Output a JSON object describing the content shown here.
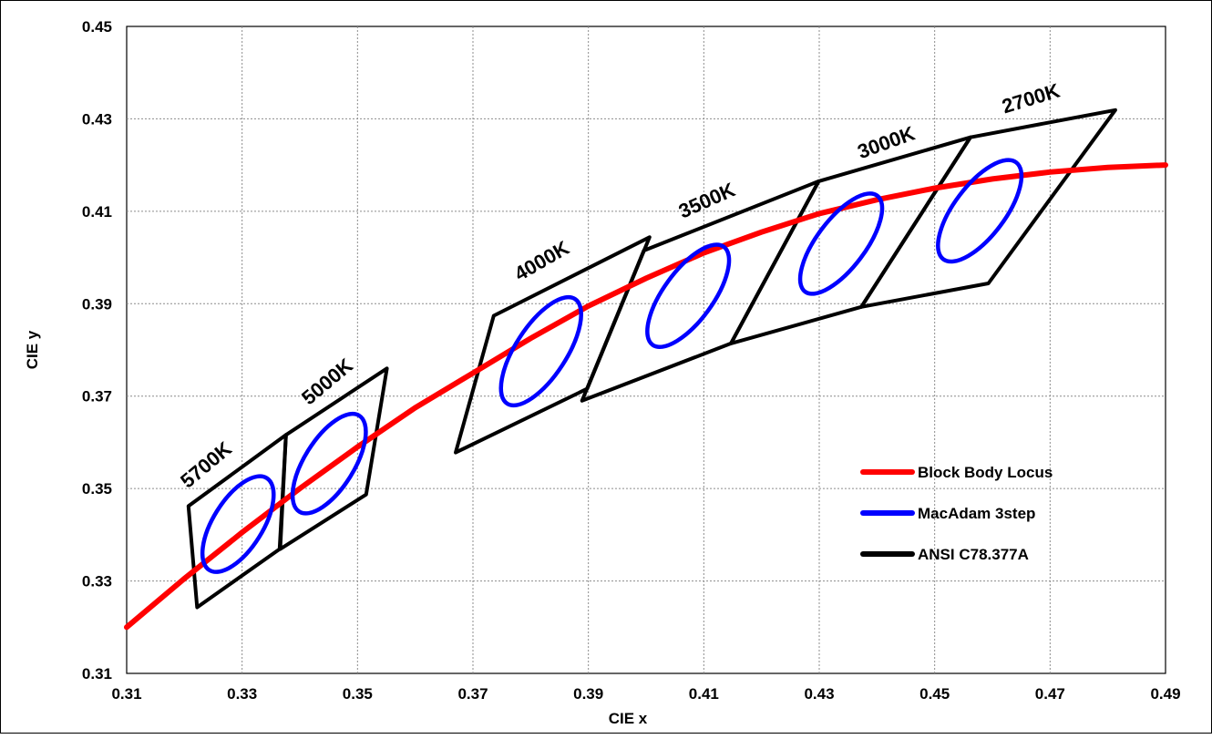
{
  "chart_data": {
    "type": "line",
    "title": "",
    "xlabel": "CIE x",
    "ylabel": "CIE y",
    "xlim": [
      0.31,
      0.49
    ],
    "ylim": [
      0.31,
      0.45
    ],
    "xticks": [
      "0.31",
      "0.33",
      "0.35",
      "0.37",
      "0.39",
      "0.41",
      "0.43",
      "0.45",
      "0.47",
      "0.49"
    ],
    "yticks": [
      "0.31",
      "0.33",
      "0.35",
      "0.37",
      "0.39",
      "0.41",
      "0.43",
      "0.45"
    ],
    "grid": true,
    "legend_position": "lower-right",
    "legend": [
      {
        "label": "Block Body Locus",
        "color": "#ff0000"
      },
      {
        "label": "MacAdam 3step",
        "color": "#0000ff"
      },
      {
        "label": "ANSI C78.377A",
        "color": "#000000"
      }
    ],
    "locus": [
      [
        0.31,
        0.32
      ],
      [
        0.32,
        0.3305
      ],
      [
        0.33,
        0.3405
      ],
      [
        0.34,
        0.35
      ],
      [
        0.35,
        0.359
      ],
      [
        0.36,
        0.3675
      ],
      [
        0.37,
        0.375
      ],
      [
        0.38,
        0.3825
      ],
      [
        0.39,
        0.3895
      ],
      [
        0.4,
        0.3955
      ],
      [
        0.41,
        0.401
      ],
      [
        0.42,
        0.4055
      ],
      [
        0.43,
        0.4095
      ],
      [
        0.44,
        0.4125
      ],
      [
        0.45,
        0.415
      ],
      [
        0.46,
        0.417
      ],
      [
        0.47,
        0.4185
      ],
      [
        0.48,
        0.4195
      ],
      [
        0.49,
        0.42
      ]
    ],
    "quadrangles": [
      {
        "label": "5700K",
        "points": [
          [
            0.3207,
            0.3462
          ],
          [
            0.3376,
            0.3616
          ],
          [
            0.3365,
            0.3369
          ],
          [
            0.3222,
            0.3243
          ]
        ]
      },
      {
        "label": "5000K",
        "points": [
          [
            0.3376,
            0.3616
          ],
          [
            0.3551,
            0.376
          ],
          [
            0.3515,
            0.3487
          ],
          [
            0.3366,
            0.3369
          ]
        ]
      },
      {
        "label": "4000K",
        "points": [
          [
            0.3736,
            0.3874
          ],
          [
            0.4006,
            0.4044
          ],
          [
            0.3898,
            0.3716
          ],
          [
            0.367,
            0.3578
          ]
        ]
      },
      {
        "label": "3500K",
        "points": [
          [
            0.3996,
            0.4015
          ],
          [
            0.4299,
            0.4165
          ],
          [
            0.4147,
            0.3814
          ],
          [
            0.3889,
            0.369
          ]
        ]
      },
      {
        "label": "3000K",
        "points": [
          [
            0.4299,
            0.4165
          ],
          [
            0.4562,
            0.426
          ],
          [
            0.4373,
            0.3893
          ],
          [
            0.4147,
            0.3814
          ]
        ]
      },
      {
        "label": "2700K",
        "points": [
          [
            0.4562,
            0.426
          ],
          [
            0.4813,
            0.4319
          ],
          [
            0.4593,
            0.3944
          ],
          [
            0.4373,
            0.3893
          ]
        ]
      }
    ],
    "ellipses": [
      {
        "cx": 0.3293,
        "cy": 0.3423,
        "rx": 0.0094,
        "ry": 0.0043,
        "angle": 58
      },
      {
        "cx": 0.3451,
        "cy": 0.3554,
        "rx": 0.0098,
        "ry": 0.0043,
        "angle": 58
      },
      {
        "cx": 0.3818,
        "cy": 0.3797,
        "rx": 0.0108,
        "ry": 0.0044,
        "angle": 57
      },
      {
        "cx": 0.4073,
        "cy": 0.3917,
        "rx": 0.0105,
        "ry": 0.0043,
        "angle": 54
      },
      {
        "cx": 0.4338,
        "cy": 0.403,
        "rx": 0.0104,
        "ry": 0.0042,
        "angle": 53
      },
      {
        "cx": 0.4578,
        "cy": 0.4101,
        "rx": 0.0105,
        "ry": 0.0044,
        "angle": 53
      }
    ],
    "cct_labels": [
      {
        "text": "5700K",
        "x": 0.3245,
        "y": 0.354,
        "angle": -40
      },
      {
        "text": "5000K",
        "x": 0.3455,
        "y": 0.372,
        "angle": -40
      },
      {
        "text": "4000K",
        "x": 0.3825,
        "y": 0.398,
        "angle": -30
      },
      {
        "text": "3500K",
        "x": 0.411,
        "y": 0.411,
        "angle": -24
      },
      {
        "text": "3000K",
        "x": 0.442,
        "y": 0.4235,
        "angle": -20
      },
      {
        "text": "2700K",
        "x": 0.467,
        "y": 0.433,
        "angle": -17
      }
    ]
  }
}
